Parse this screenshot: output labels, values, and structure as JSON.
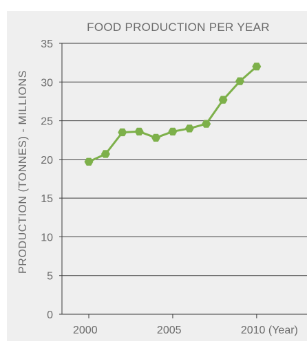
{
  "chart_data": {
    "type": "line",
    "title": "FOOD PRODUCTION PER YEAR",
    "ylabel": "PRODUCTION (TONNES) - MILLIONS",
    "xlabel": "(Year)",
    "x_ticks": [
      "2000",
      "2005",
      "2010 (Year)"
    ],
    "x_tick_values": [
      2000,
      2005,
      2010
    ],
    "y_ticks": [
      "0",
      "5",
      "10",
      "15",
      "20",
      "25",
      "30",
      "35"
    ],
    "y_tick_values": [
      0,
      5,
      10,
      15,
      20,
      25,
      30,
      35
    ],
    "xlim": [
      1998.4,
      2013
    ],
    "ylim": [
      0,
      35
    ],
    "grid": true,
    "series": [
      {
        "color": "#7db04a",
        "x": [
          2000,
          2001,
          2002,
          2003,
          2004,
          2005,
          2006,
          2007,
          2008,
          2009,
          2010
        ],
        "values": [
          19.7,
          20.7,
          23.5,
          23.6,
          22.8,
          23.6,
          24.0,
          24.6,
          27.7,
          30.1,
          32.0
        ]
      }
    ]
  }
}
